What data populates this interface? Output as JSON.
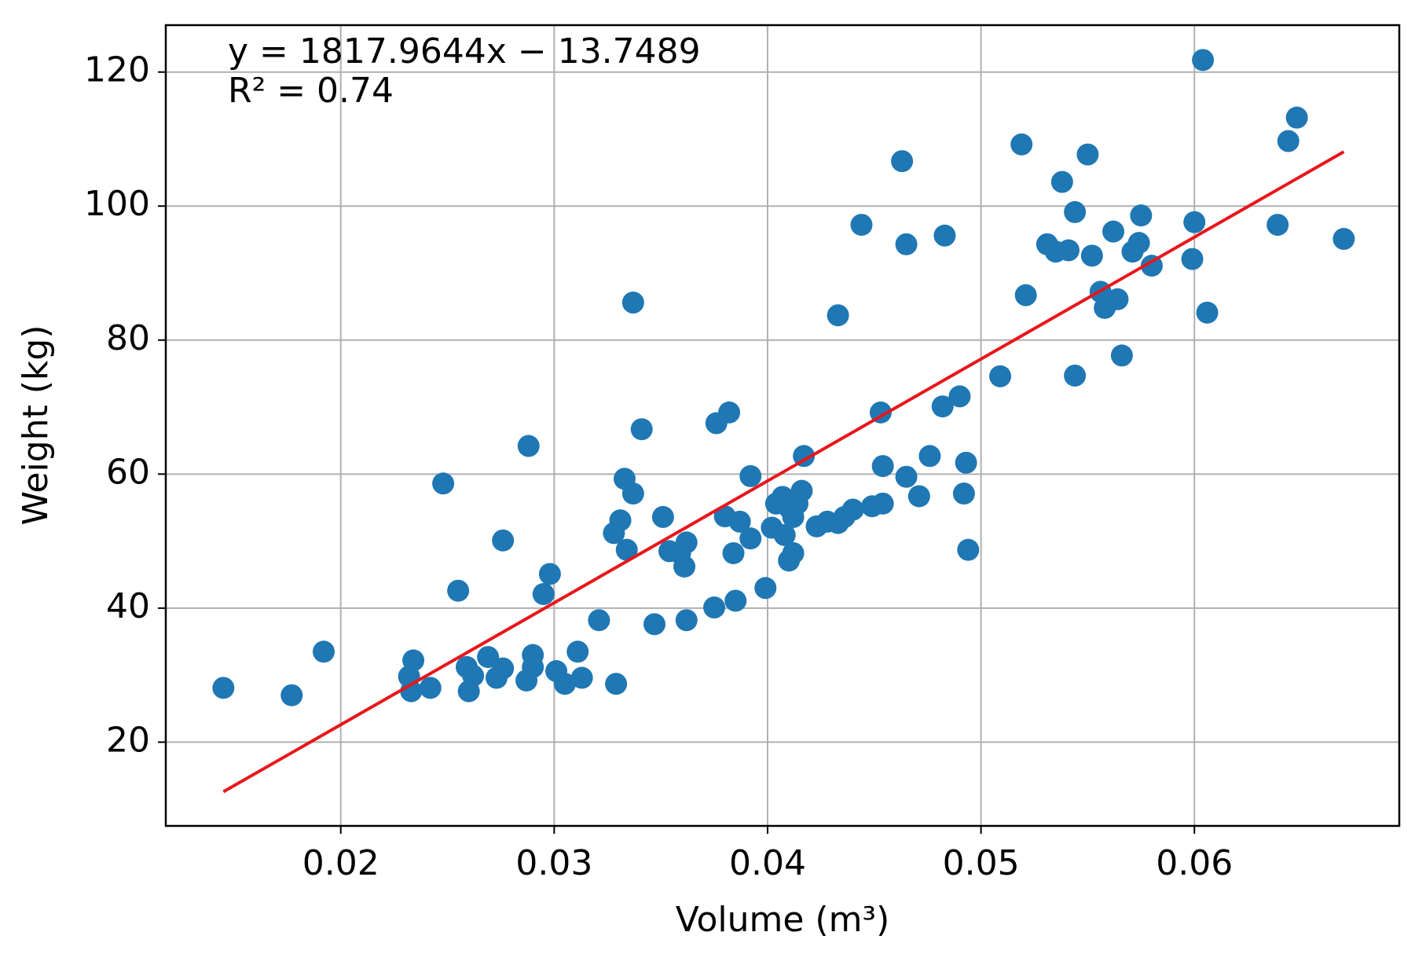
{
  "chart_data": {
    "type": "scatter",
    "xlabel": "Volume (m³)",
    "ylabel": "Weight (kg)",
    "annotations": [
      "y = 1817.9644x − 13.7489",
      "R² = 0.74"
    ],
    "xlim": [
      0.0118,
      0.0696
    ],
    "ylim": [
      7.5,
      127
    ],
    "xticks": [
      0.02,
      0.03,
      0.04,
      0.05,
      0.06
    ],
    "yticks": [
      20,
      40,
      60,
      80,
      100,
      120
    ],
    "grid": true,
    "series": [
      {
        "color": "#1f77b4",
        "x": [
          0.0145,
          0.0177,
          0.0192,
          0.0234,
          0.0232,
          0.0233,
          0.0242,
          0.0248,
          0.0255,
          0.0259,
          0.026,
          0.0262,
          0.0269,
          0.0273,
          0.0276,
          0.0276,
          0.0288,
          0.0287,
          0.029,
          0.029,
          0.0295,
          0.0298,
          0.0301,
          0.0305,
          0.0311,
          0.0313,
          0.0321,
          0.0328,
          0.0331,
          0.0333,
          0.0334,
          0.0337,
          0.0337,
          0.0329,
          0.0341,
          0.0347,
          0.0351,
          0.0354,
          0.0359,
          0.0362,
          0.0361,
          0.0362,
          0.0376,
          0.0382,
          0.0375,
          0.0385,
          0.038,
          0.0387,
          0.0384,
          0.0392,
          0.0392,
          0.0399,
          0.0402,
          0.0404,
          0.0407,
          0.0408,
          0.041,
          0.0412,
          0.0414,
          0.0416,
          0.041,
          0.0412,
          0.0417,
          0.0423,
          0.0428,
          0.0433,
          0.0436,
          0.044,
          0.0433,
          0.0444,
          0.0449,
          0.0454,
          0.0453,
          0.0454,
          0.0463,
          0.0465,
          0.0465,
          0.0471,
          0.0476,
          0.0482,
          0.0483,
          0.049,
          0.0493,
          0.0492,
          0.0494,
          0.0509,
          0.0519,
          0.0521,
          0.0531,
          0.0535,
          0.0541,
          0.0538,
          0.0544,
          0.0544,
          0.055,
          0.0552,
          0.0556,
          0.0558,
          0.0564,
          0.0562,
          0.0566,
          0.0571,
          0.0574,
          0.0575,
          0.058,
          0.06,
          0.0599,
          0.0604,
          0.0606,
          0.0639,
          0.0644,
          0.0648,
          0.067
        ],
        "values": [
          28.1,
          27.0,
          33.5,
          32.2,
          29.8,
          27.6,
          28.1,
          58.6,
          42.6,
          31.2,
          27.6,
          29.9,
          32.7,
          29.6,
          31.0,
          50.1,
          64.2,
          29.2,
          33.0,
          31.2,
          42.1,
          45.1,
          30.6,
          28.7,
          33.5,
          29.6,
          38.2,
          51.2,
          53.1,
          59.3,
          48.7,
          57.1,
          85.6,
          28.7,
          66.7,
          37.6,
          53.6,
          48.5,
          48.2,
          49.8,
          46.2,
          38.2,
          67.6,
          69.2,
          40.1,
          41.1,
          53.7,
          52.9,
          48.2,
          50.4,
          59.7,
          43.0,
          52.0,
          55.6,
          56.6,
          50.9,
          55.0,
          53.6,
          55.6,
          57.5,
          47.1,
          48.2,
          62.7,
          52.2,
          52.9,
          52.7,
          53.6,
          54.7,
          83.7,
          97.2,
          55.2,
          55.6,
          69.2,
          61.2,
          106.7,
          94.3,
          59.6,
          56.7,
          62.7,
          70.1,
          95.6,
          71.6,
          61.7,
          57.1,
          48.7,
          74.6,
          109.2,
          86.7,
          94.3,
          93.2,
          93.4,
          103.6,
          99.1,
          74.7,
          107.7,
          92.6,
          87.2,
          84.8,
          86.1,
          96.2,
          77.7,
          93.2,
          94.5,
          98.6,
          91.1,
          97.6,
          92.1,
          121.8,
          84.1,
          97.2,
          109.7,
          113.2,
          95.1
        ]
      }
    ],
    "fit_line": {
      "color": "#e8161b",
      "x": [
        0.0145,
        0.067
      ],
      "values": [
        12.6,
        108.1
      ]
    }
  }
}
